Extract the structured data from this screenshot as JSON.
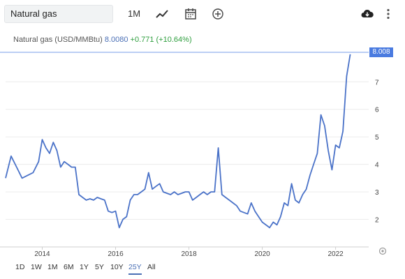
{
  "toolbar": {
    "search_value": "Natural gas",
    "interval_label": "1M",
    "chart_type_icon": "line-chart-icon",
    "calendar_icon": "calendar-icon",
    "add_compare_icon": "plus-circle-icon",
    "download_icon": "cloud-download-icon",
    "menu_icon": "more-vert-icon"
  },
  "info": {
    "name": "Natural gas (USD/MMBtu)",
    "price": "8.0080",
    "change": "+0.771 (+10.64%)"
  },
  "price_tag": "8.008",
  "ranges": [
    {
      "label": "1D",
      "active": false
    },
    {
      "label": "1W",
      "active": false
    },
    {
      "label": "1M",
      "active": false
    },
    {
      "label": "6M",
      "active": false
    },
    {
      "label": "1Y",
      "active": false
    },
    {
      "label": "5Y",
      "active": false
    },
    {
      "label": "10Y",
      "active": false
    },
    {
      "label": "25Y",
      "active": true
    },
    {
      "label": "All",
      "active": false
    }
  ],
  "colors": {
    "line": "#4a72c8",
    "accent": "#4a7be0",
    "positive": "#2e9e3e"
  },
  "chart_data": {
    "type": "line",
    "title": "",
    "xlabel": "",
    "ylabel": "",
    "x_ticks": [
      "2014",
      "2016",
      "2018",
      "2020",
      "2022"
    ],
    "y_ticks": [
      "2",
      "3",
      "4",
      "5",
      "6",
      "7"
    ],
    "xlim": [
      2013.0,
      2022.75
    ],
    "ylim": [
      1.0,
      8.3
    ],
    "grid": "horizontal",
    "series": [
      {
        "name": "",
        "x": [
          2013.0,
          2013.15,
          2013.3,
          2013.45,
          2013.6,
          2013.75,
          2013.9,
          2014.0,
          2014.1,
          2014.2,
          2014.3,
          2014.4,
          2014.5,
          2014.6,
          2014.7,
          2014.8,
          2014.9,
          2015.0,
          2015.1,
          2015.2,
          2015.3,
          2015.4,
          2015.5,
          2015.6,
          2015.7,
          2015.8,
          2015.9,
          2016.0,
          2016.1,
          2016.2,
          2016.3,
          2016.4,
          2016.5,
          2016.6,
          2016.7,
          2016.8,
          2016.9,
          2017.0,
          2017.1,
          2017.2,
          2017.3,
          2017.4,
          2017.5,
          2017.6,
          2017.7,
          2017.8,
          2017.9,
          2018.0,
          2018.1,
          2018.2,
          2018.3,
          2018.4,
          2018.5,
          2018.6,
          2018.7,
          2018.8,
          2018.9,
          2019.0,
          2019.1,
          2019.2,
          2019.3,
          2019.4,
          2019.5,
          2019.6,
          2019.7,
          2019.8,
          2019.9,
          2020.0,
          2020.1,
          2020.2,
          2020.3,
          2020.4,
          2020.5,
          2020.6,
          2020.7,
          2020.8,
          2020.9,
          2021.0,
          2021.1,
          2021.2,
          2021.3,
          2021.4,
          2021.5,
          2021.6,
          2021.7,
          2021.8,
          2021.9,
          2022.0,
          2022.1,
          2022.2,
          2022.3,
          2022.4
        ],
        "y": [
          3.5,
          4.3,
          3.9,
          3.5,
          3.6,
          3.7,
          4.1,
          4.9,
          4.6,
          4.4,
          4.8,
          4.5,
          3.9,
          4.1,
          4.0,
          3.9,
          3.9,
          2.9,
          2.8,
          2.7,
          2.75,
          2.7,
          2.8,
          2.75,
          2.7,
          2.3,
          2.25,
          2.3,
          1.7,
          2.0,
          2.1,
          2.7,
          2.9,
          2.9,
          3.0,
          3.1,
          3.7,
          3.1,
          3.2,
          3.3,
          3.0,
          2.95,
          2.9,
          3.0,
          2.9,
          2.95,
          3.0,
          3.0,
          2.7,
          2.8,
          2.9,
          3.0,
          2.9,
          3.0,
          3.0,
          4.6,
          2.9,
          2.8,
          2.7,
          2.6,
          2.5,
          2.3,
          2.25,
          2.2,
          2.6,
          2.3,
          2.1,
          1.9,
          1.8,
          1.7,
          1.9,
          1.8,
          2.1,
          2.6,
          2.5,
          3.3,
          2.7,
          2.6,
          2.9,
          3.1,
          3.6,
          4.0,
          4.4,
          5.8,
          5.4,
          4.5,
          3.8,
          4.7,
          4.6,
          5.2,
          7.2,
          8.0
        ]
      }
    ]
  }
}
